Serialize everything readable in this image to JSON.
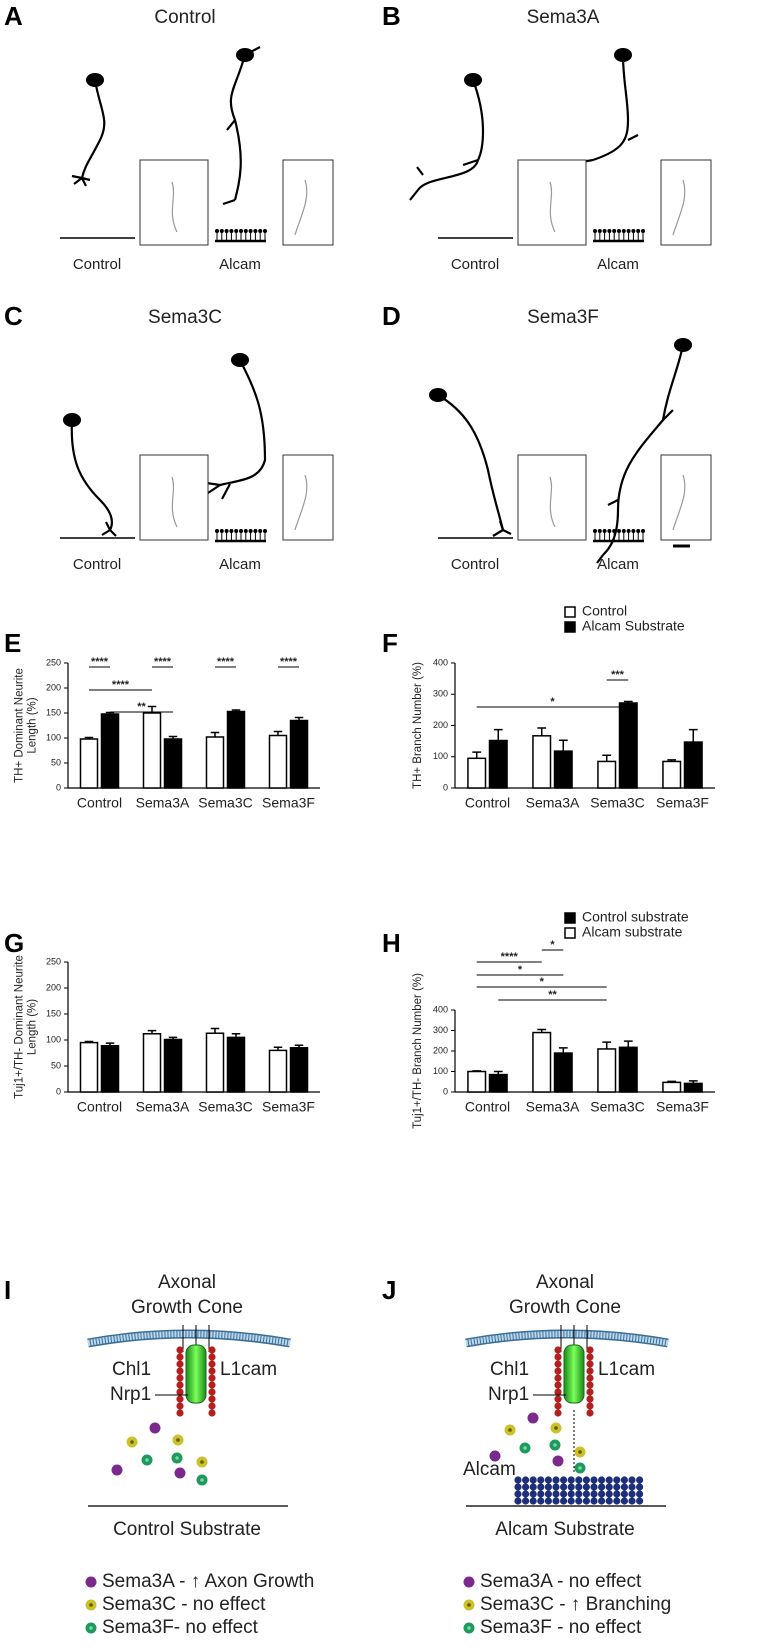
{
  "image_panels": [
    {
      "label": "A",
      "title": "Control",
      "captions": [
        "Control",
        "Alcam"
      ]
    },
    {
      "label": "B",
      "title": "Sema3A",
      "captions": [
        "Control",
        "Alcam"
      ]
    },
    {
      "label": "C",
      "title": "Sema3C",
      "captions": [
        "Control",
        "Alcam"
      ]
    },
    {
      "label": "D",
      "title": "Sema3F",
      "captions": [
        "Control",
        "Alcam"
      ]
    }
  ],
  "chart_data": [
    {
      "type": "bar",
      "panel": "E",
      "ylabel": [
        "TH+ Dominant Neurite",
        "Length (%)"
      ],
      "categories": [
        "Control",
        "Sema3A",
        "Sema3C",
        "Sema3F"
      ],
      "series": [
        {
          "color": "#ffffff",
          "values": [
            98,
            150,
            102,
            105
          ],
          "errors": [
            3,
            13,
            9,
            8
          ]
        },
        {
          "color": "#000000",
          "values": [
            148,
            98,
            153,
            135
          ],
          "errors": [
            3,
            5,
            3,
            6
          ]
        }
      ],
      "ylim": [
        0,
        250
      ],
      "yticks": [
        0,
        50,
        100,
        150,
        200,
        250
      ],
      "annotations": [
        "****",
        "****",
        "****",
        "****",
        "****",
        "**"
      ]
    },
    {
      "type": "bar",
      "panel": "F",
      "ylabel": [
        "TH+ Branch Number (%)"
      ],
      "categories": [
        "Control",
        "Sema3A",
        "Sema3C",
        "Sema3F"
      ],
      "series": [
        {
          "name": "Control",
          "color": "#ffffff",
          "values": [
            95,
            167,
            85,
            85
          ],
          "errors": [
            20,
            25,
            20,
            5
          ]
        },
        {
          "name": "Alcam Substrate",
          "color": "#000000",
          "values": [
            152,
            118,
            272,
            147
          ],
          "errors": [
            35,
            35,
            5,
            40
          ]
        }
      ],
      "ylim": [
        0,
        400
      ],
      "yticks": [
        0,
        100,
        200,
        300,
        400
      ],
      "legend": "top-right",
      "annotations": [
        "*",
        "***"
      ]
    },
    {
      "type": "bar",
      "panel": "G",
      "ylabel": [
        "Tuj1+/TH- Dominant Neurite",
        "Length (%)"
      ],
      "categories": [
        "Control",
        "Sema3A",
        "Sema3C",
        "Sema3F"
      ],
      "series": [
        {
          "color": "#ffffff",
          "values": [
            95,
            112,
            113,
            80
          ],
          "errors": [
            2,
            6,
            9,
            6
          ]
        },
        {
          "color": "#000000",
          "values": [
            89,
            101,
            105,
            85
          ],
          "errors": [
            5,
            4,
            7,
            5
          ]
        }
      ],
      "ylim": [
        0,
        250
      ],
      "yticks": [
        0,
        50,
        100,
        150,
        200,
        250
      ]
    },
    {
      "type": "bar",
      "panel": "H",
      "ylabel": [
        "Tuj1+/TH- Branch Number (%)"
      ],
      "categories": [
        "Control",
        "Sema3A",
        "Sema3C",
        "Sema3F"
      ],
      "series": [
        {
          "name": "Control substrate",
          "color": "#000000",
          "values": [
            85,
            190,
            218,
            42
          ],
          "errors": [
            15,
            25,
            30,
            12
          ]
        },
        {
          "name": "Alcam substrate",
          "color": "#ffffff",
          "values": [
            100,
            290,
            210,
            47
          ],
          "errors": [
            3,
            15,
            33,
            5
          ]
        }
      ],
      "ylim": [
        0,
        400
      ],
      "yticks": [
        0,
        100,
        200,
        300,
        400
      ],
      "legend": "top-right",
      "annotations": [
        "****",
        "*",
        "*",
        "*",
        "**"
      ]
    }
  ],
  "diagrams": [
    {
      "label": "I",
      "title": [
        "Axonal",
        "Growth Cone"
      ],
      "receptors": [
        "Chl1",
        "L1cam",
        "Nrp1"
      ],
      "substrate": "Control Substrate",
      "legend": [
        "Sema3A - ↑ Axon Growth",
        "Sema3C - no effect",
        "Sema3F- no effect"
      ]
    },
    {
      "label": "J",
      "title": [
        "Axonal",
        "Growth Cone"
      ],
      "receptors": [
        "Chl1",
        "L1cam",
        "Nrp1"
      ],
      "substrate_molecule": "Alcam",
      "substrate": "Alcam Substrate",
      "legend": [
        "Sema3A - no effect",
        "Sema3C - ↑ Branching",
        "Sema3F - no effect"
      ]
    }
  ]
}
